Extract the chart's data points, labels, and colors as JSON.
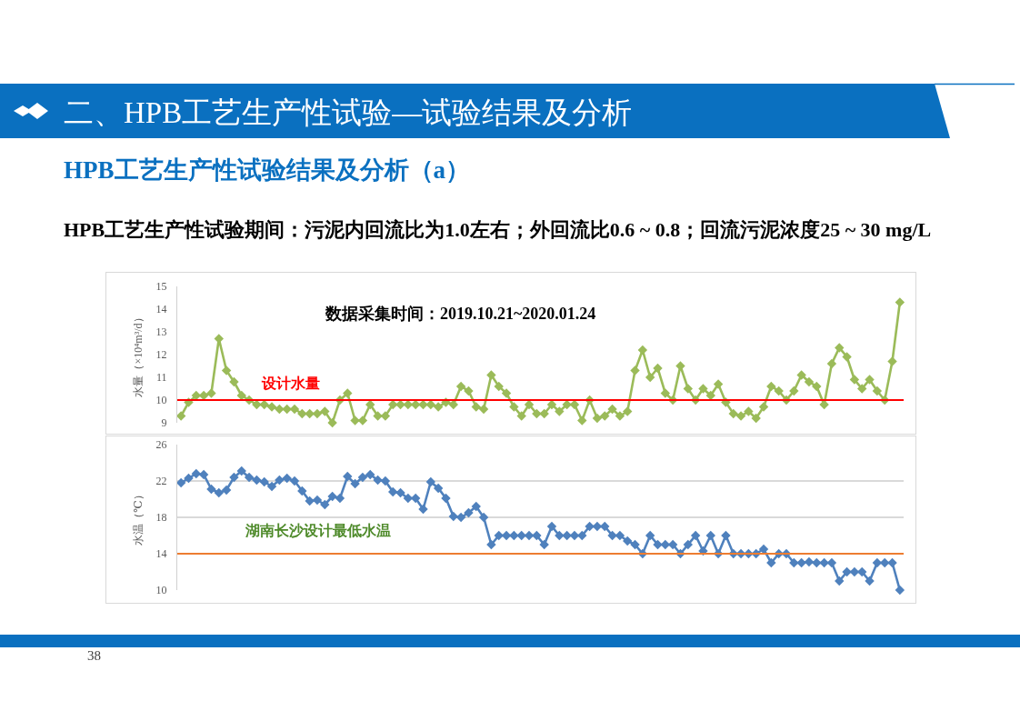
{
  "chart_data": [
    {
      "type": "line",
      "title": "二、HPB工艺生产性试验—试验结果及分析",
      "subtitle": "HPB工艺生产性试验结果及分析（a）",
      "annotations": [
        "HPB工艺生产性试验期间：污泥内回流比为1.0左右；外回流比0.6 ~ 0.8；回流污泥浓度25 ~ 30 mg/L",
        "数据采集时间：2019.10.21~2020.01.24"
      ],
      "ylabel": "水量（×10⁴m³/d）",
      "categories": [
        null,
        null,
        null,
        null,
        null,
        null,
        null,
        null,
        null,
        null,
        null,
        null,
        null,
        null,
        null,
        null,
        null,
        null,
        null,
        null,
        null,
        null,
        null,
        null,
        null,
        null,
        null,
        null,
        null,
        null,
        null,
        null,
        null,
        null,
        null,
        null,
        null,
        null,
        null,
        null,
        null,
        null,
        null,
        null,
        null,
        null,
        null,
        null,
        null,
        null,
        null,
        null,
        null,
        null,
        null,
        null,
        null,
        null,
        null,
        null,
        null,
        null,
        null,
        null,
        null,
        null,
        null,
        null,
        null,
        null,
        null,
        null,
        null,
        null,
        null,
        null,
        null,
        null,
        null,
        null,
        null,
        null,
        null,
        null,
        null,
        null,
        null,
        null,
        null,
        null,
        null,
        null,
        null,
        null,
        null,
        null
      ],
      "series": [
        {
          "color": "#9bbb59",
          "values": [
            9.3,
            9.9,
            10.2,
            10.2,
            10.3,
            12.7,
            11.3,
            10.8,
            10.2,
            10.0,
            9.8,
            9.8,
            9.7,
            9.6,
            9.6,
            9.6,
            9.4,
            9.4,
            9.4,
            9.5,
            9.0,
            10.0,
            10.3,
            9.1,
            9.1,
            9.8,
            9.3,
            9.3,
            9.8,
            9.8,
            9.8,
            9.8,
            9.8,
            9.8,
            9.7,
            9.9,
            9.8,
            10.6,
            10.4,
            9.7,
            9.6,
            11.1,
            10.6,
            10.3,
            9.7,
            9.3,
            9.8,
            9.4,
            9.4,
            9.8,
            9.5,
            9.8,
            9.8,
            9.1,
            10.0,
            9.2,
            9.3,
            9.6,
            9.3,
            9.5,
            11.3,
            12.2,
            11.0,
            11.4,
            10.3,
            10.0,
            11.5,
            10.5,
            10.0,
            10.5,
            10.2,
            10.7,
            9.9,
            9.4,
            9.3,
            9.5,
            9.2,
            9.7,
            10.6,
            10.4,
            10.0,
            10.4,
            11.1,
            10.8,
            10.6,
            9.8,
            11.6,
            12.3,
            11.9,
            10.9,
            10.5,
            10.9,
            10.4,
            10.0,
            11.7,
            14.3
          ]
        }
      ],
      "ylim": [
        9,
        15
      ],
      "yticks": [
        9,
        10,
        11,
        12,
        13,
        14,
        15
      ],
      "ref_lines": [
        {
          "axis": "y",
          "value": 10,
          "label": "设计水量",
          "color": "#ff0000"
        }
      ],
      "marker": "diamond",
      "tick_labels": "y"
    },
    {
      "type": "line",
      "annotations": [
        "38"
      ],
      "ylabel": "水温（℃）",
      "categories": [
        null,
        null,
        null,
        null,
        null,
        null,
        null,
        null,
        null,
        null,
        null,
        null,
        null,
        null,
        null,
        null,
        null,
        null,
        null,
        null,
        null,
        null,
        null,
        null,
        null,
        null,
        null,
        null,
        null,
        null,
        null,
        null,
        null,
        null,
        null,
        null,
        null,
        null,
        null,
        null,
        null,
        null,
        null,
        null,
        null,
        null,
        null,
        null,
        null,
        null,
        null,
        null,
        null,
        null,
        null,
        null,
        null,
        null,
        null,
        null,
        null,
        null,
        null,
        null,
        null,
        null,
        null,
        null,
        null,
        null,
        null,
        null,
        null,
        null,
        null,
        null,
        null,
        null,
        null,
        null,
        null,
        null,
        null,
        null,
        null,
        null,
        null,
        null,
        null,
        null,
        null,
        null,
        null,
        null,
        null,
        null
      ],
      "series": [
        {
          "color": "#4f81bd",
          "values": [
            21.8,
            22.3,
            22.8,
            22.7,
            21.1,
            20.7,
            21.0,
            22.4,
            23.1,
            22.4,
            22.1,
            21.9,
            21.4,
            22.1,
            22.3,
            22.0,
            20.9,
            19.8,
            19.9,
            19.4,
            20.3,
            20.1,
            22.5,
            21.7,
            22.4,
            22.7,
            22.1,
            22.0,
            20.8,
            20.7,
            20.1,
            20.1,
            18.9,
            21.9,
            21.2,
            20.1,
            18.1,
            18.0,
            18.5,
            19.2,
            18.0,
            15.0,
            16.0,
            16.0,
            16.0,
            16.0,
            16.0,
            16.0,
            15.0,
            17.0,
            16.0,
            16.0,
            16.0,
            16.0,
            17.0,
            17.0,
            17.0,
            16.0,
            16.0,
            15.4,
            15.0,
            14.0,
            16.0,
            15.0,
            15.0,
            15.0,
            14.0,
            15.0,
            16.0,
            14.3,
            16.0,
            14.0,
            16.0,
            14.0,
            14.0,
            14.0,
            14.0,
            14.5,
            13.0,
            14.0,
            14.0,
            13.0,
            13.0,
            13.1,
            13.0,
            13.0,
            13.0,
            11.0,
            12.0,
            12.0,
            12.0,
            11.0,
            13.0,
            13.0,
            13.0,
            10.0
          ]
        }
      ],
      "ylim": [
        10,
        26
      ],
      "yticks": [
        10,
        14,
        18,
        22,
        26
      ],
      "ref_lines": [
        {
          "axis": "y",
          "value": 14,
          "label": "湖南长沙设计最低水温",
          "color": "#ed7d31"
        }
      ],
      "grid": "y",
      "marker": "diamond",
      "tick_labels": "y"
    }
  ]
}
